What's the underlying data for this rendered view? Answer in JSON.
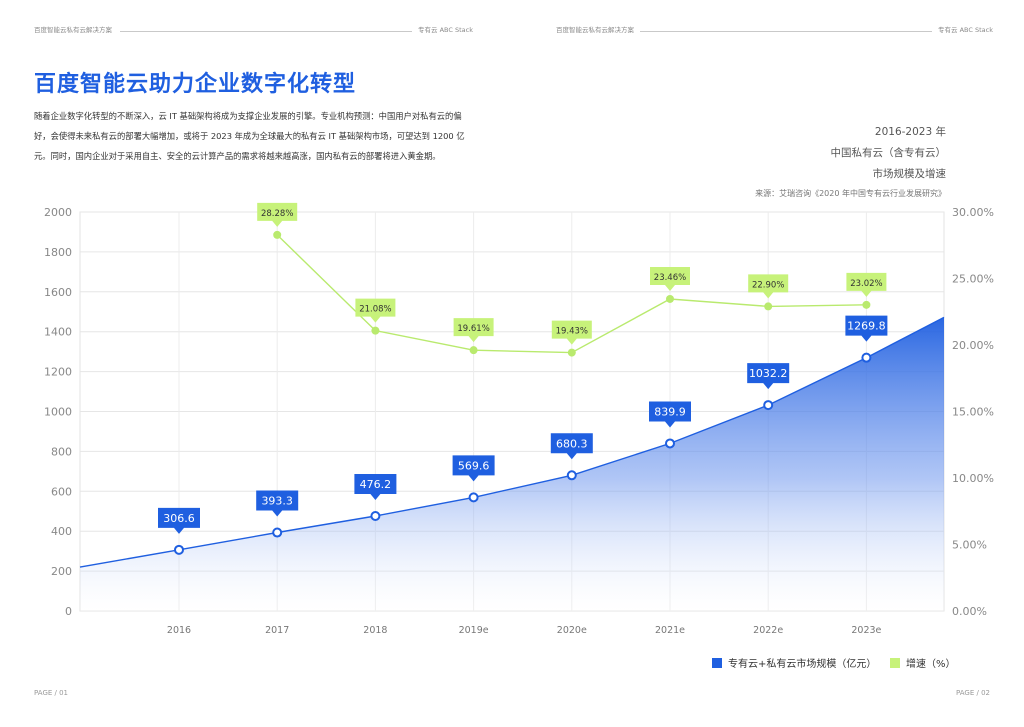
{
  "header": {
    "left_text": "百度智能云私有云解决方案",
    "mid_text": "专有云 ABC Stack",
    "right_left_text": "百度智能云私有云解决方案",
    "right_text": "专有云 ABC Stack"
  },
  "page": {
    "title": "百度智能云助力企业数字化转型",
    "paragraph": "随着企业数字化转型的不断深入，云 IT 基础架构将成为支撑企业发展的引擎。专业机构预测：中国用户对私有云的偏好，会使得未来私有云的部署大幅增加，或将于 2023 年成为全球最大的私有云 IT 基础架构市场，可望达到 1200 亿元。同时，国内企业对于采用自主、安全的云计算产品的需求将越来越高涨，国内私有云的部署将进入黄金期。",
    "side_line1": "2016-2023 年",
    "side_line2": "中国私有云（含专有云）",
    "side_line3": "市场规模及增速",
    "source": "来源：艾瑞咨询《2020 年中国专有云行业发展研究》"
  },
  "footer": {
    "left": "PAGE / 01",
    "right": "PAGE / 02"
  },
  "colors": {
    "blue": "#1f5fe0",
    "green": "#c7f27a",
    "green_line": "#b9ea6e"
  },
  "chart_data": {
    "type": "area",
    "categories": [
      "2016",
      "2017",
      "2018",
      "2019e",
      "2020e",
      "2021e",
      "2022e",
      "2023e"
    ],
    "series": [
      {
        "name": "专有云+私有云市场规模（亿元）",
        "type": "area",
        "axis": "left",
        "values": [
          306.6,
          393.3,
          476.2,
          569.6,
          680.3,
          839.9,
          1032.2,
          1269.8
        ],
        "labels": [
          "306.6",
          "393.3",
          "476.2",
          "569.6",
          "680.3",
          "839.9",
          "1032.2",
          "1269.8"
        ]
      },
      {
        "name": "增速（%）",
        "type": "line",
        "axis": "right",
        "values": [
          null,
          28.28,
          21.08,
          19.61,
          19.43,
          23.46,
          22.9,
          23.02
        ],
        "labels": [
          "",
          "28.28%",
          "21.08%",
          "19.61%",
          "19.43%",
          "23.46%",
          "22.90%",
          "23.02%"
        ]
      }
    ],
    "y_left": {
      "min": 0,
      "max": 2000,
      "ticks": [
        "0",
        "200",
        "400",
        "600",
        "800",
        "1000",
        "1200",
        "1400",
        "1600",
        "1800",
        "2000"
      ]
    },
    "y_right": {
      "min": 0,
      "max": 30,
      "ticks": [
        "0.00%",
        "5.00%",
        "10.00%",
        "15.00%",
        "20.00%",
        "25.00%",
        "30.00%"
      ]
    },
    "grid": true,
    "legend_position": "bottom-right"
  }
}
